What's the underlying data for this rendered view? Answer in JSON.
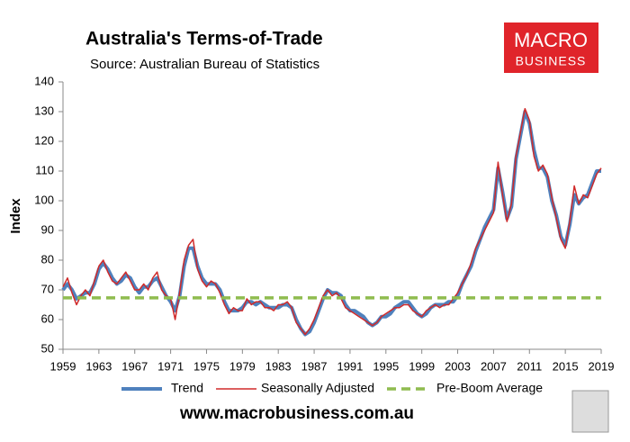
{
  "chart_data": {
    "type": "line",
    "title": "Australia's Terms-of-Trade",
    "subtitle": "Source: Australian Bureau of Statistics",
    "ylabel": "Index",
    "logo": [
      "MACRO",
      "BUSINESS"
    ],
    "footer": "www.macrobusiness.com.au",
    "xlim": [
      1959,
      2019
    ],
    "xticks": [
      1959,
      1963,
      1967,
      1971,
      1975,
      1979,
      1983,
      1987,
      1991,
      1995,
      1999,
      2003,
      2007,
      2011,
      2015,
      2019
    ],
    "ylim": [
      50,
      140
    ],
    "yticks": [
      50,
      60,
      70,
      80,
      90,
      100,
      110,
      120,
      130,
      140
    ],
    "series": [
      {
        "name": "Trend",
        "color": "#4f81bd",
        "width": 4,
        "dash": false,
        "x": [
          1959,
          1959.5,
          1960,
          1960.5,
          1961,
          1961.5,
          1962,
          1962.5,
          1963,
          1963.5,
          1964,
          1964.5,
          1965,
          1965.5,
          1966,
          1966.5,
          1967,
          1967.5,
          1968,
          1968.5,
          1969,
          1969.5,
          1970,
          1970.5,
          1971,
          1971.5,
          1972,
          1972.5,
          1973,
          1973.5,
          1974,
          1974.5,
          1975,
          1975.5,
          1976,
          1976.5,
          1977,
          1977.5,
          1978,
          1978.5,
          1979,
          1979.5,
          1980,
          1980.5,
          1981,
          1981.5,
          1982,
          1982.5,
          1983,
          1983.5,
          1984,
          1984.5,
          1985,
          1985.5,
          1986,
          1986.5,
          1987,
          1987.5,
          1988,
          1988.5,
          1989,
          1989.5,
          1990,
          1990.5,
          1991,
          1991.5,
          1992,
          1992.5,
          1993,
          1993.5,
          1994,
          1994.5,
          1995,
          1995.5,
          1996,
          1996.5,
          1997,
          1997.5,
          1998,
          1998.5,
          1999,
          1999.5,
          2000,
          2000.5,
          2001,
          2001.5,
          2002,
          2002.5,
          2003,
          2003.5,
          2004,
          2004.5,
          2005,
          2005.5,
          2006,
          2006.5,
          2007,
          2007.5,
          2008,
          2008.5,
          2009,
          2009.5,
          2010,
          2010.5,
          2011,
          2011.5,
          2012,
          2012.5,
          2013,
          2013.5,
          2014,
          2014.5,
          2015,
          2015.5,
          2016,
          2016.5,
          2017,
          2017.5,
          2018,
          2018.5,
          2019
        ],
        "values": [
          70,
          72,
          70,
          67,
          68,
          69,
          69,
          72,
          77,
          79,
          77,
          74,
          72,
          73,
          75,
          74,
          71,
          69,
          71,
          71,
          73,
          74,
          71,
          68,
          66,
          63,
          68,
          78,
          84,
          84,
          78,
          74,
          72,
          72,
          72,
          70,
          66,
          63,
          63,
          63,
          64,
          66,
          66,
          65,
          66,
          65,
          64,
          64,
          64,
          65,
          65,
          64,
          60,
          57,
          55,
          56,
          59,
          63,
          67,
          70,
          69,
          69,
          68,
          65,
          63,
          63,
          62,
          61,
          59,
          58,
          59,
          61,
          61,
          62,
          64,
          65,
          66,
          66,
          64,
          62,
          61,
          62,
          64,
          65,
          65,
          65,
          66,
          66,
          68,
          72,
          75,
          78,
          83,
          87,
          91,
          94,
          97,
          111,
          103,
          94,
          98,
          114,
          122,
          130,
          126,
          117,
          111,
          111,
          108,
          100,
          95,
          88,
          85,
          92,
          102,
          99,
          101,
          102,
          106,
          110,
          110
        ]
      },
      {
        "name": "Seasonally Adjusted",
        "color": "#d02a2a",
        "width": 1.5,
        "dash": false,
        "x": [
          1959,
          1959.5,
          1960,
          1960.5,
          1961,
          1961.5,
          1962,
          1962.5,
          1963,
          1963.5,
          1964,
          1964.5,
          1965,
          1965.5,
          1966,
          1966.5,
          1967,
          1967.5,
          1968,
          1968.5,
          1969,
          1969.5,
          1970,
          1970.5,
          1971,
          1971.5,
          1972,
          1972.5,
          1973,
          1973.5,
          1974,
          1974.5,
          1975,
          1975.5,
          1976,
          1976.5,
          1977,
          1977.5,
          1978,
          1978.5,
          1979,
          1979.5,
          1980,
          1980.5,
          1981,
          1981.5,
          1982,
          1982.5,
          1983,
          1983.5,
          1984,
          1984.5,
          1985,
          1985.5,
          1986,
          1986.5,
          1987,
          1987.5,
          1988,
          1988.5,
          1989,
          1989.5,
          1990,
          1990.5,
          1991,
          1991.5,
          1992,
          1992.5,
          1993,
          1993.5,
          1994,
          1994.5,
          1995,
          1995.5,
          1996,
          1996.5,
          1997,
          1997.5,
          1998,
          1998.5,
          1999,
          1999.5,
          2000,
          2000.5,
          2001,
          2001.5,
          2002,
          2002.5,
          2003,
          2003.5,
          2004,
          2004.5,
          2005,
          2005.5,
          2006,
          2006.5,
          2007,
          2007.5,
          2008,
          2008.5,
          2009,
          2009.5,
          2010,
          2010.5,
          2011,
          2011.5,
          2012,
          2012.5,
          2013,
          2013.5,
          2014,
          2014.5,
          2015,
          2015.5,
          2016,
          2016.5,
          2017,
          2017.5,
          2018,
          2018.5,
          2019
        ],
        "values": [
          71,
          74,
          69,
          65,
          68,
          70,
          68,
          73,
          78,
          80,
          76,
          73,
          72,
          74,
          76,
          73,
          70,
          70,
          72,
          70,
          74,
          76,
          70,
          68,
          67,
          60,
          69,
          80,
          85,
          87,
          77,
          73,
          71,
          73,
          72,
          69,
          65,
          62,
          64,
          63,
          63,
          67,
          65,
          66,
          66,
          64,
          64,
          63,
          65,
          65,
          66,
          64,
          59,
          57,
          55,
          57,
          60,
          64,
          68,
          70,
          68,
          69,
          67,
          64,
          63,
          62,
          61,
          60,
          59,
          58,
          59,
          61,
          62,
          63,
          64,
          64,
          65,
          65,
          63,
          62,
          61,
          63,
          64,
          65,
          64,
          65,
          65,
          67,
          69,
          72,
          75,
          79,
          84,
          87,
          90,
          93,
          96,
          113,
          102,
          93,
          99,
          115,
          123,
          131,
          127,
          115,
          110,
          112,
          109,
          101,
          94,
          87,
          84,
          93,
          105,
          99,
          102,
          101,
          105,
          109,
          111
        ]
      },
      {
        "name": "Pre-Boom Average",
        "color": "#8fbc4f",
        "width": 3.5,
        "dash": true,
        "x": [
          1959,
          2019
        ],
        "values": [
          67.3,
          67.3
        ]
      }
    ]
  }
}
